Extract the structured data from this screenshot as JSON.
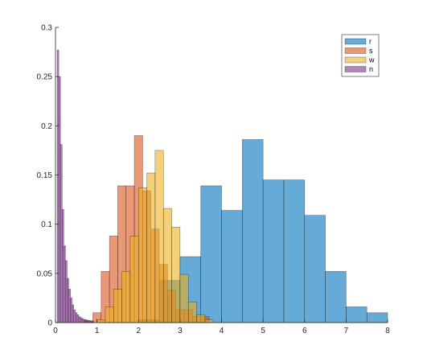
{
  "chart_data": {
    "type": "histogram",
    "title": "",
    "xlabel": "",
    "ylabel": "",
    "xlim": [
      0,
      8
    ],
    "ylim": [
      0,
      0.3
    ],
    "x_ticks": [
      0,
      1,
      2,
      3,
      4,
      5,
      6,
      7,
      8
    ],
    "y_ticks": [
      0,
      0.05,
      0.1,
      0.15,
      0.2,
      0.25,
      0.3
    ],
    "x_tick_labels": [
      "0",
      "1",
      "2",
      "3",
      "4",
      "5",
      "6",
      "7",
      "8"
    ],
    "y_tick_labels": [
      "0",
      "0.05",
      "0.1",
      "0.15",
      "0.2",
      "0.25",
      "0.3"
    ],
    "grid": false,
    "legend_position": "top-right",
    "series": [
      {
        "name": "r",
        "color": "#0072BD",
        "bins": [
          {
            "x0": 2.0,
            "x1": 2.5,
            "value": 0.003
          },
          {
            "x0": 2.5,
            "x1": 3.0,
            "value": 0.043
          },
          {
            "x0": 3.0,
            "x1": 3.5,
            "value": 0.067
          },
          {
            "x0": 3.5,
            "x1": 4.0,
            "value": 0.139
          },
          {
            "x0": 4.0,
            "x1": 4.5,
            "value": 0.114
          },
          {
            "x0": 4.5,
            "x1": 5.0,
            "value": 0.186
          },
          {
            "x0": 5.0,
            "x1": 5.5,
            "value": 0.145
          },
          {
            "x0": 5.5,
            "x1": 6.0,
            "value": 0.145
          },
          {
            "x0": 6.0,
            "x1": 6.5,
            "value": 0.109
          },
          {
            "x0": 6.5,
            "x1": 7.0,
            "value": 0.052
          },
          {
            "x0": 7.0,
            "x1": 7.5,
            "value": 0.016
          },
          {
            "x0": 7.5,
            "x1": 8.0,
            "value": 0.01
          }
        ]
      },
      {
        "name": "s",
        "color": "#D95319",
        "bins": [
          {
            "x0": 0.7,
            "x1": 0.9,
            "value": 0.002
          },
          {
            "x0": 0.9,
            "x1": 1.1,
            "value": 0.01
          },
          {
            "x0": 1.1,
            "x1": 1.3,
            "value": 0.052
          },
          {
            "x0": 1.3,
            "x1": 1.5,
            "value": 0.088
          },
          {
            "x0": 1.5,
            "x1": 1.7,
            "value": 0.139
          },
          {
            "x0": 1.7,
            "x1": 1.9,
            "value": 0.139
          },
          {
            "x0": 1.9,
            "x1": 2.1,
            "value": 0.19
          },
          {
            "x0": 2.1,
            "x1": 2.3,
            "value": 0.134
          },
          {
            "x0": 2.3,
            "x1": 2.5,
            "value": 0.095
          },
          {
            "x0": 2.5,
            "x1": 2.7,
            "value": 0.059
          },
          {
            "x0": 2.7,
            "x1": 2.9,
            "value": 0.033
          },
          {
            "x0": 2.9,
            "x1": 3.1,
            "value": 0.013
          },
          {
            "x0": 3.1,
            "x1": 3.3,
            "value": 0.013
          },
          {
            "x0": 3.3,
            "x1": 3.5,
            "value": 0.006
          },
          {
            "x0": 3.5,
            "x1": 3.7,
            "value": 0.006
          }
        ]
      },
      {
        "name": "w",
        "color": "#EDB120",
        "bins": [
          {
            "x0": 1.0,
            "x1": 1.2,
            "value": 0.003
          },
          {
            "x0": 1.2,
            "x1": 1.4,
            "value": 0.016
          },
          {
            "x0": 1.4,
            "x1": 1.6,
            "value": 0.034
          },
          {
            "x0": 1.6,
            "x1": 1.8,
            "value": 0.052
          },
          {
            "x0": 1.8,
            "x1": 2.0,
            "value": 0.088
          },
          {
            "x0": 2.0,
            "x1": 2.2,
            "value": 0.137
          },
          {
            "x0": 2.2,
            "x1": 2.4,
            "value": 0.152
          },
          {
            "x0": 2.4,
            "x1": 2.6,
            "value": 0.175
          },
          {
            "x0": 2.6,
            "x1": 2.8,
            "value": 0.116
          },
          {
            "x0": 2.8,
            "x1": 3.0,
            "value": 0.097
          },
          {
            "x0": 3.0,
            "x1": 3.2,
            "value": 0.049
          },
          {
            "x0": 3.2,
            "x1": 3.4,
            "value": 0.021
          },
          {
            "x0": 3.4,
            "x1": 3.6,
            "value": 0.008
          },
          {
            "x0": 3.6,
            "x1": 3.8,
            "value": 0.003
          }
        ]
      },
      {
        "name": "n",
        "color": "#7E2F8E",
        "bins": [
          {
            "x0": 0.0,
            "x1": 0.04,
            "value": 0.0
          },
          {
            "x0": 0.04,
            "x1": 0.08,
            "value": 0.277
          },
          {
            "x0": 0.08,
            "x1": 0.12,
            "value": 0.25
          },
          {
            "x0": 0.12,
            "x1": 0.16,
            "value": 0.181
          },
          {
            "x0": 0.16,
            "x1": 0.2,
            "value": 0.115
          },
          {
            "x0": 0.2,
            "x1": 0.24,
            "value": 0.078
          },
          {
            "x0": 0.24,
            "x1": 0.28,
            "value": 0.063
          },
          {
            "x0": 0.28,
            "x1": 0.32,
            "value": 0.045
          },
          {
            "x0": 0.32,
            "x1": 0.36,
            "value": 0.034
          },
          {
            "x0": 0.36,
            "x1": 0.4,
            "value": 0.025
          },
          {
            "x0": 0.4,
            "x1": 0.44,
            "value": 0.018
          },
          {
            "x0": 0.44,
            "x1": 0.48,
            "value": 0.013
          },
          {
            "x0": 0.48,
            "x1": 0.52,
            "value": 0.01
          },
          {
            "x0": 0.52,
            "x1": 0.56,
            "value": 0.008
          },
          {
            "x0": 0.56,
            "x1": 0.6,
            "value": 0.006
          },
          {
            "x0": 0.6,
            "x1": 0.64,
            "value": 0.005
          },
          {
            "x0": 0.64,
            "x1": 0.68,
            "value": 0.004
          },
          {
            "x0": 0.68,
            "x1": 0.72,
            "value": 0.003
          },
          {
            "x0": 0.72,
            "x1": 0.76,
            "value": 0.003
          },
          {
            "x0": 0.76,
            "x1": 0.8,
            "value": 0.002
          },
          {
            "x0": 0.8,
            "x1": 0.84,
            "value": 0.002
          },
          {
            "x0": 0.84,
            "x1": 0.88,
            "value": 0.001
          },
          {
            "x0": 0.88,
            "x1": 0.92,
            "value": 0.001
          }
        ]
      }
    ]
  }
}
